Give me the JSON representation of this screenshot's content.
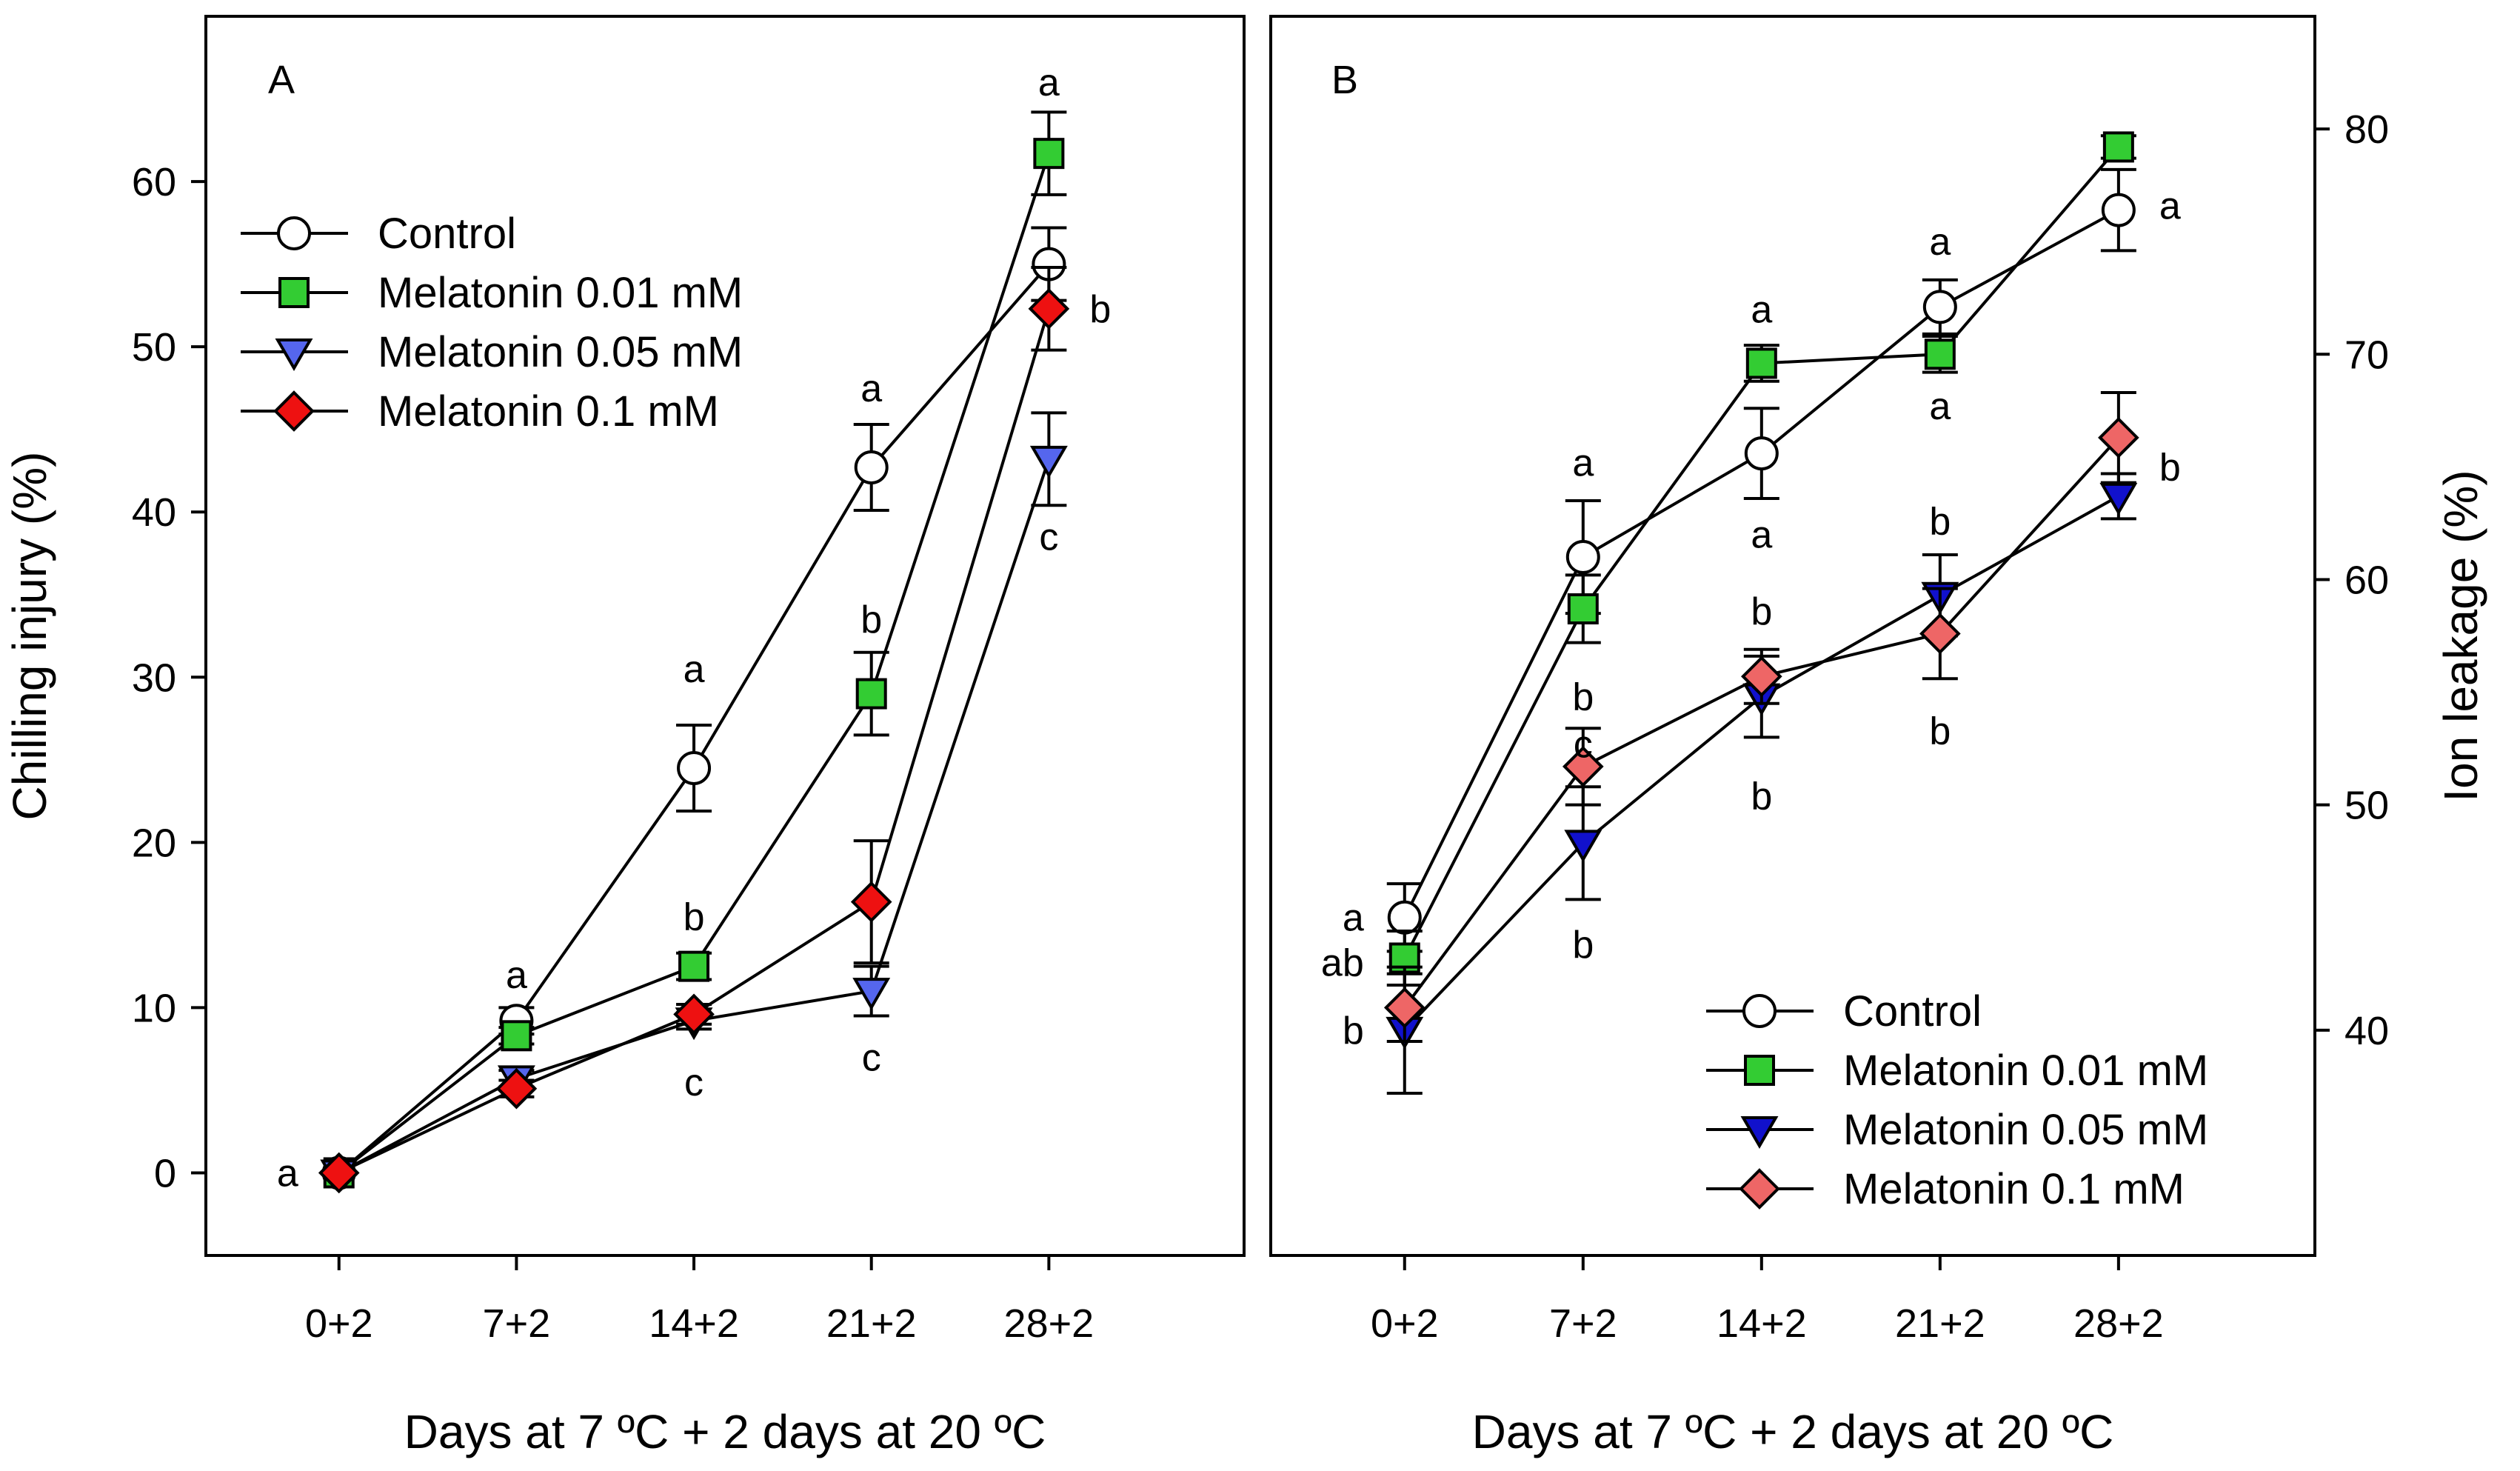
{
  "chart_data": [
    {
      "type": "line",
      "panel_label": "A",
      "categories": [
        "0+2",
        "7+2",
        "14+2",
        "21+2",
        "28+2"
      ],
      "xlabel": "Days at 7 ºC + 2 days at 20 ºC",
      "ylabel": "Chilling injury (%)",
      "ylim": [
        -5,
        70
      ],
      "yticks": [
        "0",
        "10",
        "20",
        "30",
        "40",
        "50",
        "60"
      ],
      "legend_position": "top-left",
      "series": [
        {
          "name": "Control",
          "marker": "circle",
          "color": "#ffffff",
          "values": [
            0,
            9.2,
            24.5,
            42.7,
            55.0
          ],
          "errors": [
            0.3,
            0.8,
            2.6,
            2.6,
            2.2
          ]
        },
        {
          "name": "Melatonin 0.01 mM",
          "marker": "square",
          "color": "#33cc33",
          "values": [
            0,
            8.3,
            12.5,
            29.0,
            61.7
          ],
          "errors": [
            0.3,
            0.5,
            0.8,
            2.5,
            2.5
          ]
        },
        {
          "name": "Melatonin 0.05 mM",
          "marker": "triangle-down",
          "color": "#5566ee",
          "values": [
            0,
            5.7,
            9.2,
            11.0,
            43.2
          ],
          "errors": [
            0.3,
            0.5,
            0.5,
            1.5,
            2.8
          ]
        },
        {
          "name": "Melatonin 0.1 mM",
          "marker": "diamond",
          "color": "#ee1111",
          "values": [
            0,
            5.1,
            9.6,
            16.4,
            52.3
          ],
          "errors": [
            0.3,
            0.5,
            0.6,
            3.7,
            2.5
          ]
        }
      ],
      "annotations": [
        {
          "text": "a",
          "x": "0+2",
          "y": 0,
          "side": "left"
        },
        {
          "text": "a",
          "x": "7+2",
          "y": 12,
          "side": "center"
        },
        {
          "text": "a",
          "x": "14+2",
          "y": 30.5,
          "side": "center"
        },
        {
          "text": "b",
          "x": "14+2",
          "y": 15.5,
          "side": "center"
        },
        {
          "text": "c",
          "x": "14+2",
          "y": 5.5,
          "side": "center"
        },
        {
          "text": "a",
          "x": "21+2",
          "y": 47.5,
          "side": "center"
        },
        {
          "text": "b",
          "x": "21+2",
          "y": 33.5,
          "side": "center"
        },
        {
          "text": "c",
          "x": "21+2",
          "y": 7,
          "side": "center"
        },
        {
          "text": "a",
          "x": "28+2",
          "y": 66,
          "side": "center"
        },
        {
          "text": "b",
          "x": "28+2",
          "y": 52.3,
          "side": "right"
        },
        {
          "text": "c",
          "x": "28+2",
          "y": 38.5,
          "side": "center"
        }
      ]
    },
    {
      "type": "line",
      "panel_label": "B",
      "categories": [
        "0+2",
        "7+2",
        "14+2",
        "21+2",
        "28+2"
      ],
      "xlabel": "Days at 7 ºC + 2 days at 20 ºC",
      "ylabel": "Ion leakage (%)",
      "ylim": [
        30,
        85
      ],
      "yticks": [
        "40",
        "50",
        "60",
        "70",
        "80"
      ],
      "legend_position": "bottom-right",
      "series": [
        {
          "name": "Control",
          "marker": "circle",
          "color": "#ffffff",
          "values": [
            45.0,
            61.0,
            65.6,
            72.1,
            76.4
          ],
          "errors": [
            1.5,
            2.5,
            2.0,
            1.2,
            1.8
          ]
        },
        {
          "name": "Melatonin 0.01 mM",
          "marker": "square",
          "color": "#33cc33",
          "values": [
            43.2,
            58.7,
            69.6,
            70.0,
            79.2
          ],
          "errors": [
            1.2,
            1.5,
            0.8,
            0.8,
            0.5
          ]
        },
        {
          "name": "Melatonin 0.05 mM",
          "marker": "triangle-down",
          "color": "#1111cc",
          "values": [
            40.0,
            48.3,
            54.8,
            59.3,
            63.7
          ],
          "errors": [
            2.8,
            2.5,
            1.8,
            1.8,
            1.0
          ]
        },
        {
          "name": "Melatonin 0.1 mM",
          "marker": "diamond",
          "color": "#ee6666",
          "values": [
            41.0,
            51.7,
            55.7,
            57.6,
            66.3
          ],
          "errors": [
            1.5,
            1.7,
            1.2,
            2.0,
            2.0
          ]
        }
      ],
      "annotations": [
        {
          "text": "a",
          "x": "0+2",
          "y": 45.0,
          "side": "left"
        },
        {
          "text": "ab",
          "x": "0+2",
          "y": 43.0,
          "side": "left"
        },
        {
          "text": "b",
          "x": "0+2",
          "y": 40.0,
          "side": "left"
        },
        {
          "text": "a",
          "x": "7+2",
          "y": 65.2,
          "side": "center"
        },
        {
          "text": "b",
          "x": "7+2",
          "y": 54.8,
          "side": "center"
        },
        {
          "text": "c",
          "x": "7+2",
          "y": 52.7,
          "side": "center"
        },
        {
          "text": "b",
          "x": "7+2",
          "y": 43.8,
          "side": "center"
        },
        {
          "text": "a",
          "x": "14+2",
          "y": 72.0,
          "side": "center"
        },
        {
          "text": "b",
          "x": "14+2",
          "y": 58.6,
          "side": "center"
        },
        {
          "text": "a",
          "x": "14+2",
          "y": 62.0,
          "side": "center"
        },
        {
          "text": "b",
          "x": "14+2",
          "y": 50.4,
          "side": "center"
        },
        {
          "text": "a",
          "x": "21+2",
          "y": 75.0,
          "side": "center"
        },
        {
          "text": "a",
          "x": "21+2",
          "y": 67.7,
          "side": "center"
        },
        {
          "text": "b",
          "x": "21+2",
          "y": 62.6,
          "side": "center"
        },
        {
          "text": "b",
          "x": "21+2",
          "y": 53.3,
          "side": "center"
        },
        {
          "text": "a",
          "x": "28+2",
          "y": 76.6,
          "side": "right"
        },
        {
          "text": "b",
          "x": "28+2",
          "y": 65.0,
          "side": "right"
        }
      ]
    }
  ]
}
